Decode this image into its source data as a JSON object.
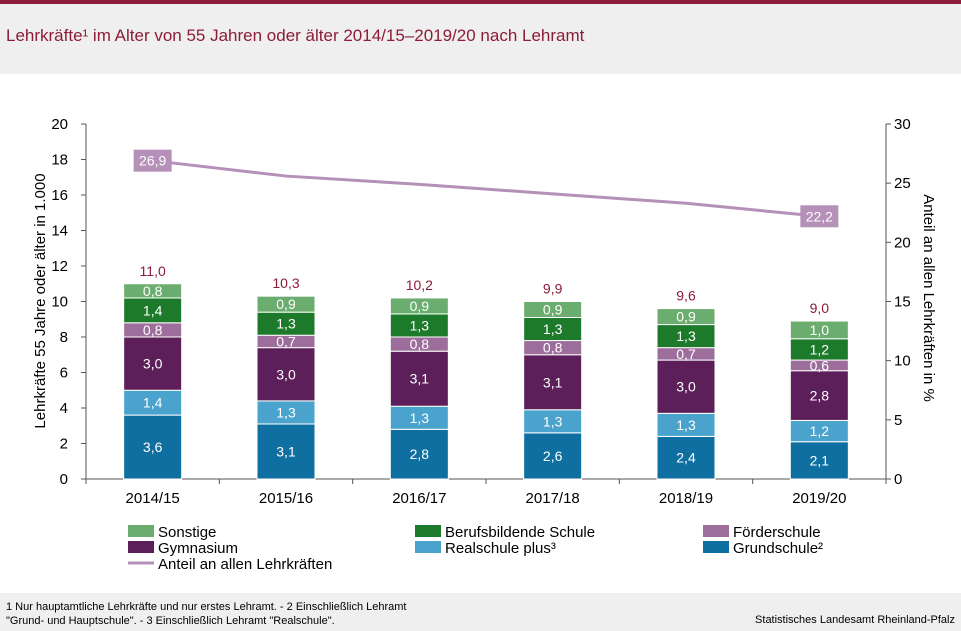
{
  "title": "Lehrkräfte¹ im Alter von 55 Jahren oder älter 2014/15–2019/20 nach Lehramt",
  "footnote_line1": "1 Nur hauptamtliche Lehrkräfte und nur erstes Lehramt. - 2 Einschließlich Lehramt",
  "footnote_line2": "\"Grund- und Hauptschule\". - 3 Einschließlich Lehramt \"Realschule\".",
  "source": "Statistisches Landesamt Rheinland-Pfalz",
  "chart_data": {
    "type": "bar",
    "stacked": true,
    "categories": [
      "2014/15",
      "2015/16",
      "2016/17",
      "2017/18",
      "2018/19",
      "2019/20"
    ],
    "ylabel": "Lehrkräfte 55 Jahre oder älter in 1.000",
    "y2label": "Anteil an allen Lehrkräften in %",
    "ylim": [
      0,
      20
    ],
    "y2lim": [
      0,
      30
    ],
    "yticks": [
      "0",
      "2",
      "4",
      "6",
      "8",
      "10",
      "12",
      "14",
      "16",
      "18",
      "20"
    ],
    "y2ticks": [
      "0",
      "5",
      "10",
      "15",
      "20",
      "25",
      "30"
    ],
    "series": [
      {
        "name": "Grundschule²",
        "color": "#0e6fa0",
        "values": [
          3.6,
          3.1,
          2.8,
          2.6,
          2.4,
          2.1
        ],
        "labels": [
          "3,6",
          "3,1",
          "2,8",
          "2,6",
          "2,4",
          "2,1"
        ]
      },
      {
        "name": "Realschule plus³",
        "color": "#4aa3cc",
        "values": [
          1.4,
          1.3,
          1.3,
          1.3,
          1.3,
          1.2
        ],
        "labels": [
          "1,4",
          "1,3",
          "1,3",
          "1,3",
          "1,3",
          "1,2"
        ]
      },
      {
        "name": "Gymnasium",
        "color": "#5c1f5a",
        "values": [
          3.0,
          3.0,
          3.1,
          3.1,
          3.0,
          2.8
        ],
        "labels": [
          "3,0",
          "3,0",
          "3,1",
          "3,1",
          "3,0",
          "2,8"
        ]
      },
      {
        "name": "Förderschule",
        "color": "#9d6e9b",
        "values": [
          0.8,
          0.7,
          0.8,
          0.8,
          0.7,
          0.6
        ],
        "labels": [
          "0,8",
          "0,7",
          "0,8",
          "0,8",
          "0,7",
          "0,6"
        ]
      },
      {
        "name": "Berufsbildende Schule",
        "color": "#1c7a2a",
        "values": [
          1.4,
          1.3,
          1.3,
          1.3,
          1.3,
          1.2
        ],
        "labels": [
          "1,4",
          "1,3",
          "1,3",
          "1,3",
          "1,3",
          "1,2"
        ]
      },
      {
        "name": "Sonstige",
        "color": "#6aad6e",
        "values": [
          0.8,
          0.9,
          0.9,
          0.9,
          0.9,
          1.0
        ],
        "labels": [
          "0,8",
          "0,9",
          "0,9",
          "0,9",
          "0,9",
          "1,0"
        ]
      }
    ],
    "totals": [
      "11,0",
      "10,3",
      "10,2",
      "9,9",
      "9,6",
      "9,0"
    ],
    "totals_color": "#8c1c38",
    "line": {
      "name": "Anteil an allen Lehrkräften",
      "color": "#b590b8",
      "values": [
        26.9,
        25.6,
        24.9,
        24.1,
        23.3,
        22.2
      ],
      "labels": {
        "0": "26,9",
        "5": "22,2"
      }
    },
    "legend_order": [
      "Sonstige",
      "Berufsbildende Schule",
      "Förderschule",
      "Gymnasium",
      "Realschule plus³",
      "Grundschule²",
      "Anteil an allen Lehrkräften"
    ],
    "legend_position": "bottom",
    "grid": false
  }
}
